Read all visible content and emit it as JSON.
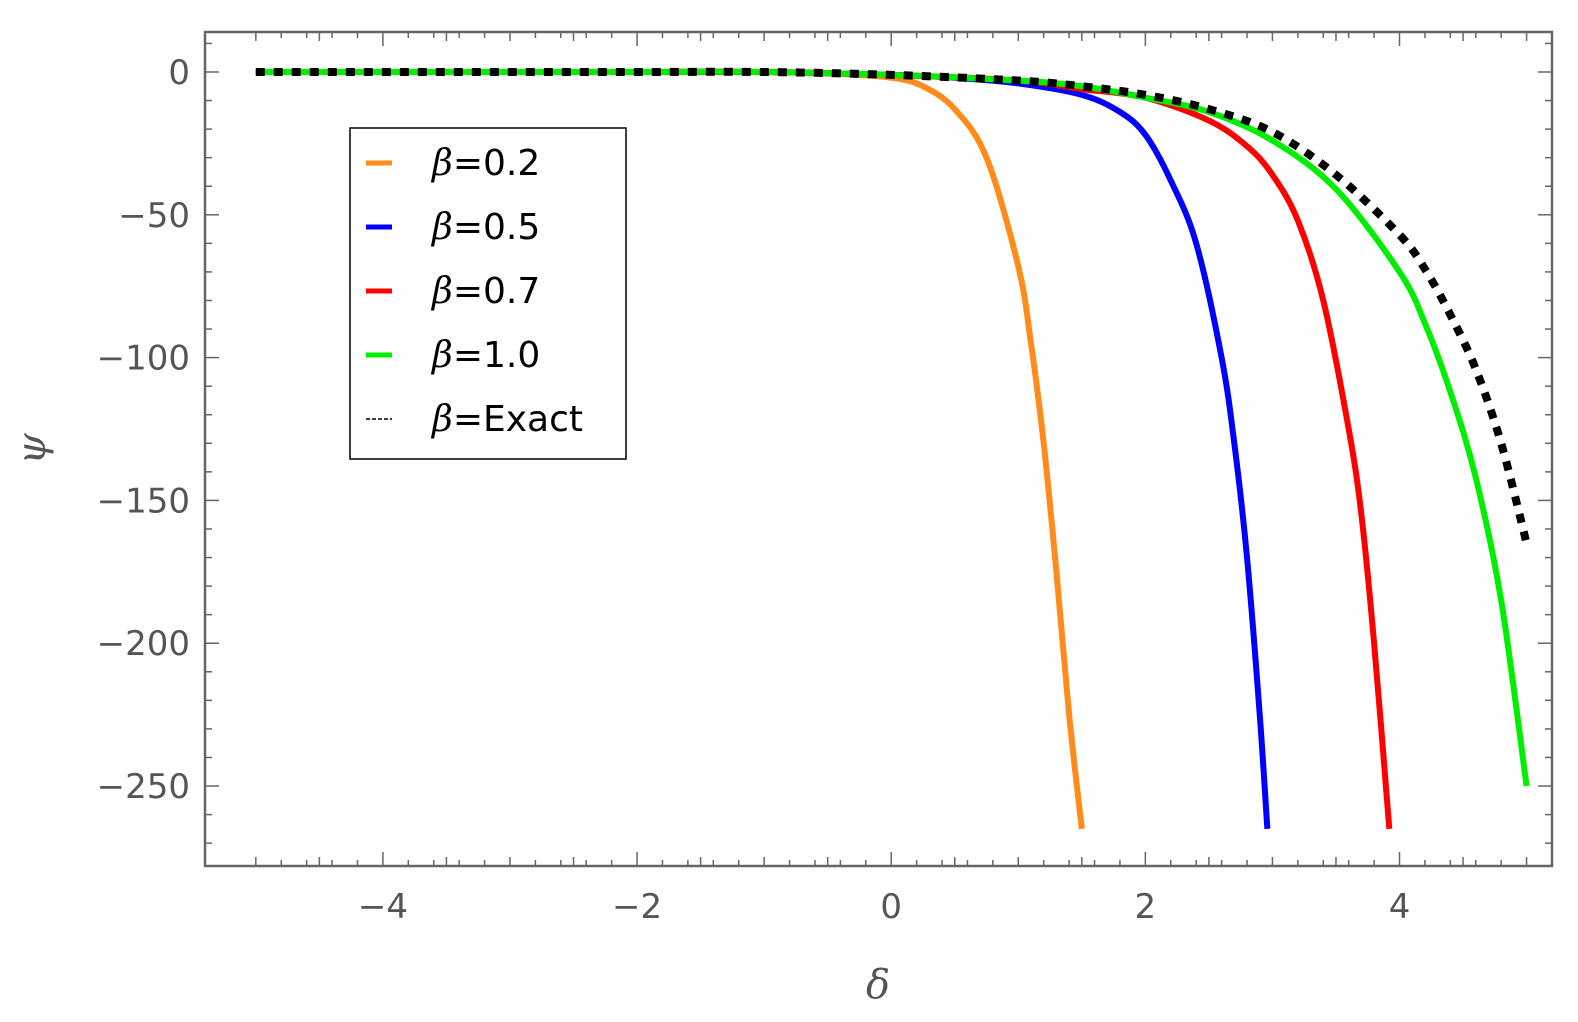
{
  "chart_data": {
    "type": "line",
    "title": "",
    "xlabel": "δ",
    "ylabel": "ψ",
    "xlim": [
      -5.4,
      5.2
    ],
    "ylim": [
      -278,
      14
    ],
    "xticks": [
      -4,
      -2,
      0,
      2,
      4
    ],
    "xtick_labels": [
      "−4",
      "−2",
      "0",
      "2",
      "4"
    ],
    "yticks": [
      0,
      -50,
      -100,
      -150,
      -200,
      -250
    ],
    "ytick_labels": [
      "0",
      "−50",
      "−100",
      "−150",
      "−200",
      "−250"
    ],
    "grid": false,
    "legend_position": "upper-left",
    "series": [
      {
        "name": "β=0.2",
        "color": "#ff8c1a",
        "style": "solid",
        "x": [
          -5,
          -4,
          -3,
          -2,
          -1,
          -0.5,
          0,
          0.25,
          0.5,
          0.75,
          1.0,
          1.1,
          1.2,
          1.3,
          1.4,
          1.5
        ],
        "y": [
          0,
          0,
          0,
          0,
          0,
          -0.5,
          -2,
          -5,
          -13,
          -30,
          -68,
          -95,
          -130,
          -175,
          -225,
          -265
        ]
      },
      {
        "name": "β=0.5",
        "color": "#0000ff",
        "style": "solid",
        "x": [
          -5,
          -4,
          -3,
          -2,
          -1,
          0,
          0.5,
          1.0,
          1.5,
          1.8,
          2.0,
          2.2,
          2.4,
          2.6,
          2.7,
          2.8,
          2.9,
          2.96
        ],
        "y": [
          0,
          0,
          0,
          0,
          0,
          -1,
          -2,
          -4,
          -8,
          -14,
          -22,
          -38,
          -60,
          -100,
          -130,
          -170,
          -225,
          -265
        ]
      },
      {
        "name": "β=0.7",
        "color": "#ff0000",
        "style": "solid",
        "x": [
          -5,
          -4,
          -3,
          -2,
          -1,
          0,
          1.0,
          1.5,
          2.0,
          2.5,
          2.8,
          3.0,
          3.2,
          3.4,
          3.6,
          3.7,
          3.8,
          3.92
        ],
        "y": [
          0,
          0,
          0,
          0,
          0,
          -1,
          -3,
          -6,
          -9,
          -17,
          -26,
          -36,
          -52,
          -80,
          -125,
          -155,
          -200,
          -265
        ]
      },
      {
        "name": "β=1.0",
        "color": "#00ee00",
        "style": "solid",
        "x": [
          -5,
          -4,
          -3,
          -2,
          -1,
          0,
          1.0,
          1.5,
          2.0,
          2.5,
          3.0,
          3.5,
          4.0,
          4.2,
          4.4,
          4.6,
          4.8,
          5.0
        ],
        "y": [
          0,
          0,
          0,
          0,
          0,
          -1,
          -3,
          -5,
          -9,
          -14,
          -24,
          -41,
          -70,
          -88,
          -112,
          -142,
          -185,
          -250
        ]
      },
      {
        "name": "β=Exact",
        "color": "#000000",
        "style": "dotted",
        "x": [
          -5,
          -4,
          -3,
          -2,
          -1,
          0,
          1.0,
          1.5,
          2.0,
          2.5,
          3.0,
          3.5,
          4.0,
          4.2,
          4.4,
          4.6,
          4.8,
          5.0
        ],
        "y": [
          0,
          0,
          0,
          0,
          0,
          -1,
          -3,
          -5,
          -8,
          -13,
          -21,
          -36,
          -57,
          -69,
          -85,
          -104,
          -130,
          -165
        ]
      }
    ]
  }
}
